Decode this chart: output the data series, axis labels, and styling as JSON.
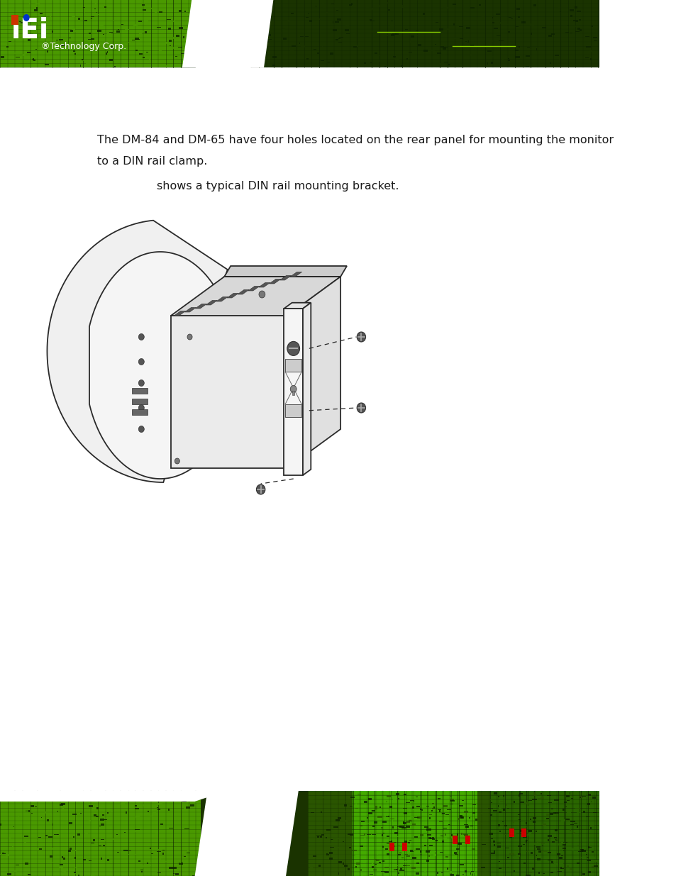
{
  "bg_color": "#ffffff",
  "body_text_1": "The DM-84 and DM-65 have four holes located on the rear panel for mounting the monitor",
  "body_text_2": "to a DIN rail clamp.",
  "figure_caption": "shows a typical DIN rail mounting bracket.",
  "text_color": "#1a1a1a",
  "figsize": [
    9.54,
    12.35
  ],
  "dpi": 100,
  "header_green_dark": "#1a3300",
  "header_green_bright": "#55aa00",
  "footer_green_dark": "#1a3300",
  "footer_green_bright": "#55aa00"
}
